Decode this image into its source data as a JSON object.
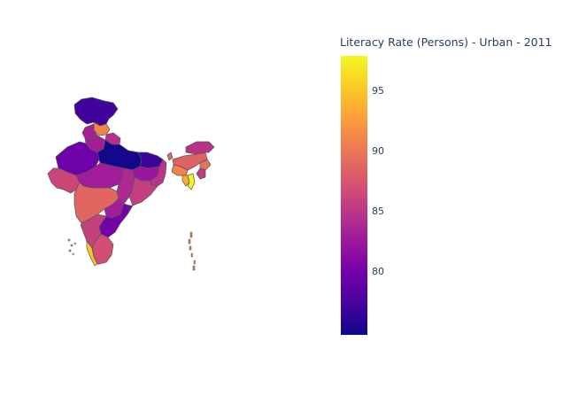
{
  "legend": {
    "title": "Literacy Rate (Persons) - Urban - 2011",
    "min": 74.8,
    "max": 97.9,
    "ticks": [
      "80",
      "85",
      "90",
      "95"
    ],
    "colorscale": [
      "#0d0887",
      "#46039f",
      "#7201a8",
      "#9c179e",
      "#bd3786",
      "#d8576b",
      "#ed7953",
      "#fb9f3a",
      "#fdca26",
      "#f0f921"
    ]
  },
  "chart_data": {
    "type": "choropleth",
    "title": "",
    "colorbar_title": "Literacy Rate (Persons) - Urban - 2011",
    "range": [
      74.8,
      97.9
    ],
    "regions": [
      {
        "id": "jk",
        "value": 77.1
      },
      {
        "id": "hp",
        "value": 91.1
      },
      {
        "id": "pb",
        "value": 83.2
      },
      {
        "id": "hr",
        "value": 83.1
      },
      {
        "id": "uk",
        "value": 84.5
      },
      {
        "id": "rj",
        "value": 79.7
      },
      {
        "id": "up",
        "value": 75.1
      },
      {
        "id": "bh",
        "value": 76.9
      },
      {
        "id": "gj",
        "value": 86.3
      },
      {
        "id": "mp",
        "value": 82.9
      },
      {
        "id": "cg",
        "value": 84.0
      },
      {
        "id": "jh",
        "value": 82.3
      },
      {
        "id": "wb",
        "value": 84.8
      },
      {
        "id": "od",
        "value": 85.7
      },
      {
        "id": "mh",
        "value": 88.7
      },
      {
        "id": "tg",
        "value": 83.0
      },
      {
        "id": "ap",
        "value": 80.1
      },
      {
        "id": "ka",
        "value": 85.8
      },
      {
        "id": "ga",
        "value": 89.6
      },
      {
        "id": "kl",
        "value": 95.1
      },
      {
        "id": "tn",
        "value": 87.0
      },
      {
        "id": "sk",
        "value": 88.7
      },
      {
        "id": "ar",
        "value": 84.7
      },
      {
        "id": "as",
        "value": 88.5
      },
      {
        "id": "nl",
        "value": 89.6
      },
      {
        "id": "ml",
        "value": 90.8
      },
      {
        "id": "mn",
        "value": 85.4
      },
      {
        "id": "mz",
        "value": 97.6
      },
      {
        "id": "tr",
        "value": 93.5
      },
      {
        "id": "an",
        "value": 90.1
      },
      {
        "id": "ld",
        "value": 91.8
      }
    ]
  }
}
